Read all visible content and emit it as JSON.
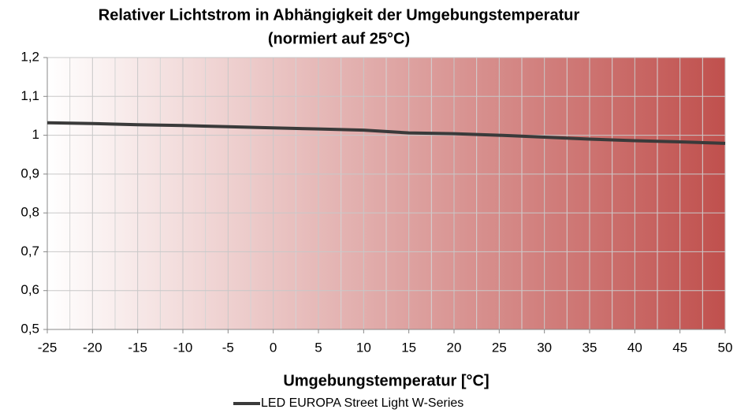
{
  "chart_data": {
    "type": "line",
    "title": "Relativer Lichtstrom in Abhängigkeit der Umgebungstemperatur",
    "subtitle": "(normiert auf 25°C)",
    "x_label": "Umgebungstemperatur [°C]",
    "x": [
      -25,
      -20,
      -15,
      -10,
      -5,
      0,
      5,
      10,
      15,
      20,
      25,
      30,
      35,
      40,
      45,
      50
    ],
    "series": [
      {
        "name": "LED EUROPA Street Light W-Series",
        "color": "#3a3a3a",
        "values": [
          1.032,
          1.03,
          1.027,
          1.025,
          1.022,
          1.019,
          1.016,
          1.013,
          1.006,
          1.004,
          1.0,
          0.995,
          0.99,
          0.986,
          0.983,
          0.979
        ]
      }
    ],
    "xlim": [
      -25,
      50
    ],
    "xticks": [
      -25,
      -20,
      -15,
      -10,
      -5,
      0,
      5,
      10,
      15,
      20,
      25,
      30,
      35,
      40,
      45,
      50
    ],
    "ylim": [
      0.5,
      1.2
    ],
    "yticks": [
      {
        "value": 0.5,
        "label": "0,5"
      },
      {
        "value": 0.6,
        "label": "0,6"
      },
      {
        "value": 0.7,
        "label": "0,7"
      },
      {
        "value": 0.8,
        "label": "0,8"
      },
      {
        "value": 0.9,
        "label": "0,9"
      },
      1,
      {
        "value": 1.1,
        "label": "1,1"
      },
      {
        "value": 1.2,
        "label": "1,2"
      }
    ],
    "grid": true,
    "minor_grid": true,
    "legend": "bottom",
    "background_gradient": [
      "#ffffff",
      "#c0504d"
    ]
  }
}
